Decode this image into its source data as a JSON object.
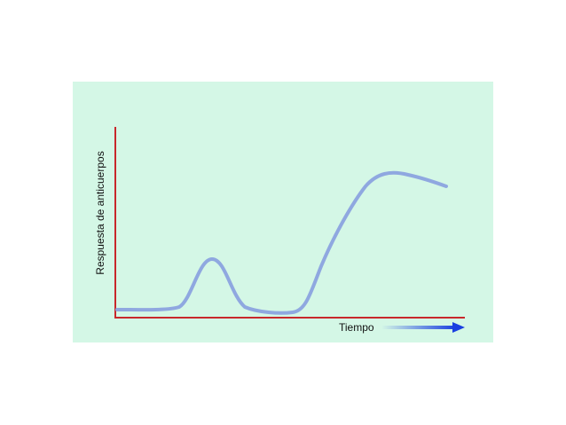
{
  "diagram": {
    "y_axis_label": "Respuesta de anticuerpos",
    "x_axis_label": "Tiempo"
  }
}
